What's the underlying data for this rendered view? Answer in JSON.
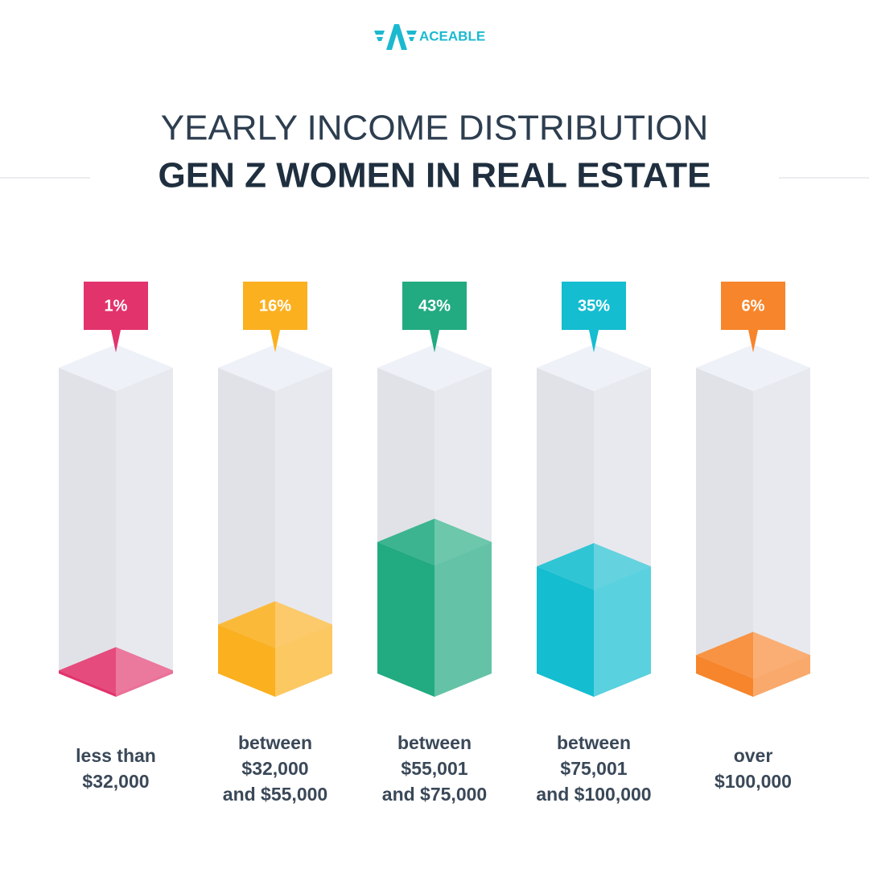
{
  "brand": "ACEABLE",
  "chart_data": {
    "type": "bar",
    "title": "YEARLY INCOME DISTRIBUTION",
    "subtitle": "GEN Z WOMEN IN REAL ESTATE",
    "categories": [
      "less than\n$32,000",
      "between\n$32,000\nand $55,000",
      "between\n$55,001\nand $75,000",
      "between\n$75,001\nand $100,000",
      "over\n$100,000"
    ],
    "values": [
      1,
      16,
      43,
      35,
      6
    ],
    "value_labels": [
      "1%",
      "16%",
      "43%",
      "35%",
      "6%"
    ],
    "colors": [
      "#e2336c",
      "#fbb01f",
      "#22aa80",
      "#14bdd0",
      "#f7852b"
    ],
    "ylim": [
      0,
      100
    ]
  }
}
